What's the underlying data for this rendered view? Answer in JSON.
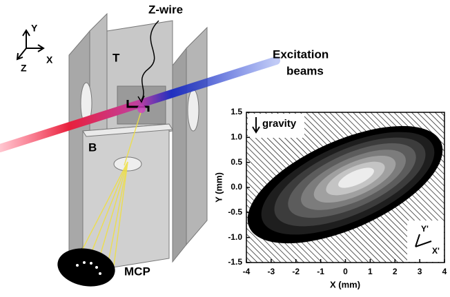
{
  "diagram": {
    "coord_axes": [
      "Y",
      "X",
      "Z"
    ],
    "wire_label": "Z-wire",
    "beam_label": [
      "Excitation",
      "beams"
    ],
    "top_plate": "T",
    "bottom_plate": "B",
    "detector_label": "MCP"
  },
  "chart_data": {
    "type": "contour",
    "x_label": "X (mm)",
    "y_label": "Y (mm)",
    "xlim": [
      -4,
      4
    ],
    "ylim": [
      -1.5,
      1.5
    ],
    "xticks": [
      -4,
      -3,
      -2,
      -1,
      0,
      1,
      2,
      3,
      4
    ],
    "yticks": [
      1.5,
      {
        "value": 1,
        "label": "1.0"
      },
      0.5,
      {
        "value": 0,
        "label": "0.0"
      },
      -0.5,
      {
        "value": -1,
        "label": "-1.0"
      },
      -1.5
    ],
    "annotations": [
      "gravity",
      "Y'",
      "X'"
    ]
  }
}
